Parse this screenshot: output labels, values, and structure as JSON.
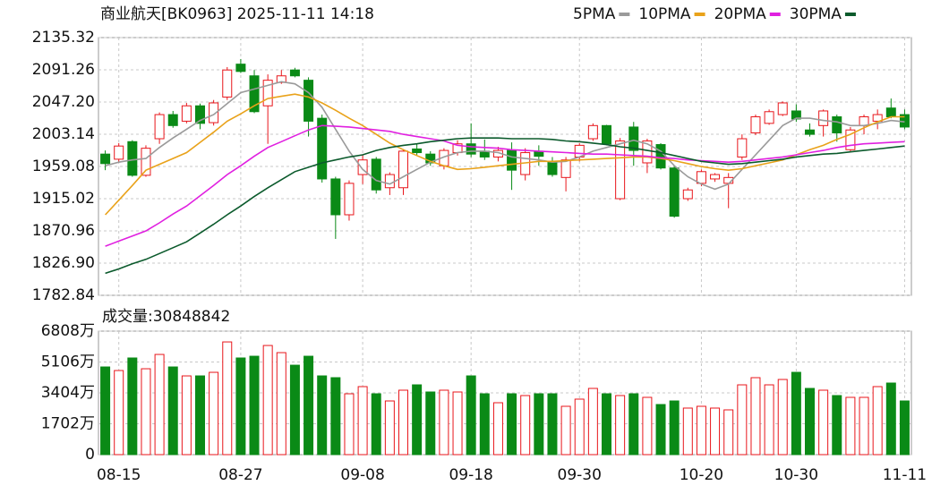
{
  "chart_data": [
    {
      "type": "candlestick",
      "title": "商业航天[BK0963] 2025-11-11 14:18",
      "up_color": "#e8161b",
      "down_color": "#0a8a16",
      "open": [
        1976,
        1969,
        1993,
        1947,
        1997,
        2030,
        2021,
        2042,
        2019,
        2054,
        2099,
        2083,
        2042,
        2074,
        2091,
        2077,
        2025,
        1942,
        1893,
        1948,
        1969,
        1930,
        1930,
        1983,
        1976,
        1960,
        1978,
        1990,
        1980,
        1972,
        1981,
        1948,
        1980,
        1966,
        1944,
        1972,
        1997,
        2015,
        1915,
        2013,
        1964,
        1989,
        1957,
        1915,
        1936,
        1942,
        1936,
        1972,
        2005,
        2018,
        2030,
        2035,
        2009,
        2015,
        2027,
        1982,
        2015,
        2021,
        2039,
        2030
      ],
      "high": [
        1981,
        1991,
        1995,
        1988,
        2033,
        2035,
        2046,
        2045,
        2050,
        2095,
        2106,
        2091,
        2085,
        2091,
        2094,
        2081,
        2030,
        1945,
        1940,
        1975,
        1972,
        1951,
        1983,
        1990,
        1980,
        1984,
        1995,
        2018,
        1996,
        1986,
        1992,
        1984,
        1988,
        1972,
        1972,
        1991,
        2018,
        2016,
        1998,
        2020,
        1997,
        1991,
        1960,
        1930,
        1955,
        1950,
        1950,
        2003,
        2030,
        2037,
        2048,
        2044,
        2018,
        2037,
        2030,
        2013,
        2030,
        2037,
        2052,
        2037
      ],
      "low": [
        1954,
        1964,
        1945,
        1945,
        1990,
        2012,
        2018,
        2010,
        2015,
        2050,
        2087,
        2032,
        1990,
        2072,
        2081,
        2000,
        1937,
        1860,
        1885,
        1935,
        1922,
        1920,
        1920,
        1975,
        1960,
        1955,
        1974,
        1972,
        1968,
        1966,
        1927,
        1940,
        1960,
        1945,
        1925,
        1966,
        1994,
        1988,
        1913,
        1960,
        1950,
        1955,
        1889,
        1912,
        1932,
        1938,
        1902,
        1968,
        2002,
        2016,
        2028,
        2020,
        2000,
        2000,
        1993,
        1980,
        2003,
        2010,
        2025,
        2010
      ],
      "close": [
        1963,
        1987,
        1947,
        1984,
        2030,
        2015,
        2042,
        2018,
        2046,
        2091,
        2089,
        2034,
        2077,
        2083,
        2083,
        2021,
        1942,
        1893,
        1936,
        1968,
        1927,
        1948,
        1980,
        1978,
        1964,
        1981,
        1990,
        1976,
        1972,
        1981,
        1954,
        1978,
        1973,
        1948,
        1968,
        1988,
        2015,
        1990,
        1994,
        1981,
        1994,
        1957,
        1891,
        1927,
        1952,
        1948,
        1944,
        1997,
        2027,
        2034,
        2046,
        2024,
        2003,
        2035,
        2005,
        2009,
        2027,
        2030,
        2027,
        2013
      ],
      "series": [
        {
          "name": "5PMA",
          "color": "#9a9a9a",
          "values": [
            1960,
            1965,
            1968,
            1970,
            1985,
            1998,
            2010,
            2022,
            2030,
            2045,
            2060,
            2065,
            2070,
            2075,
            2072,
            2060,
            2040,
            2010,
            1980,
            1955,
            1940,
            1935,
            1945,
            1955,
            1965,
            1972,
            1978,
            1980,
            1980,
            1978,
            1972,
            1970,
            1968,
            1965,
            1966,
            1972,
            1980,
            1985,
            1990,
            1995,
            1990,
            1980,
            1960,
            1945,
            1935,
            1928,
            1935,
            1955,
            1975,
            1995,
            2015,
            2025,
            2025,
            2022,
            2020,
            2015,
            2015,
            2018,
            2022,
            2020
          ]
        },
        {
          "name": "10PMA",
          "color": "#e9a21a",
          "values": [
            1893,
            1913,
            1933,
            1954,
            1962,
            1970,
            1978,
            1992,
            2006,
            2021,
            2031,
            2042,
            2052,
            2055,
            2058,
            2054,
            2046,
            2036,
            2025,
            2015,
            2003,
            1991,
            1982,
            1974,
            1966,
            1960,
            1955,
            1956,
            1958,
            1960,
            1962,
            1964,
            1966,
            1966,
            1967,
            1968,
            1969,
            1970,
            1971,
            1972,
            1972,
            1970,
            1967,
            1963,
            1959,
            1956,
            1954,
            1956,
            1960,
            1964,
            1968,
            1975,
            1982,
            1988,
            1996,
            2003,
            2012,
            2020,
            2027,
            2027
          ]
        },
        {
          "name": "20PMA",
          "color": "#e020e0",
          "values": [
            1850,
            1857,
            1864,
            1871,
            1882,
            1894,
            1905,
            1919,
            1933,
            1948,
            1960,
            1973,
            1985,
            1993,
            2001,
            2009,
            2015,
            2014,
            2013,
            2011,
            2009,
            2007,
            2003,
            2000,
            1997,
            1994,
            1988,
            1986,
            1985,
            1984,
            1982,
            1981,
            1980,
            1979,
            1978,
            1977,
            1976,
            1976,
            1975,
            1974,
            1973,
            1971,
            1970,
            1968,
            1967,
            1966,
            1965,
            1966,
            1968,
            1970,
            1972,
            1975,
            1978,
            1981,
            1985,
            1988,
            1990,
            1991,
            1992,
            1993
          ]
        },
        {
          "name": "30PMA",
          "color": "#0b5a2c",
          "values": [
            1813,
            1819,
            1826,
            1832,
            1840,
            1848,
            1856,
            1868,
            1880,
            1893,
            1905,
            1918,
            1930,
            1941,
            1952,
            1958,
            1964,
            1968,
            1972,
            1975,
            1981,
            1985,
            1988,
            1990,
            1993,
            1995,
            1997,
            1998,
            1998,
            1998,
            1997,
            1997,
            1997,
            1996,
            1994,
            1993,
            1991,
            1989,
            1986,
            1984,
            1981,
            1978,
            1974,
            1970,
            1966,
            1964,
            1962,
            1963,
            1965,
            1967,
            1969,
            1972,
            1974,
            1976,
            1977,
            1979,
            1981,
            1983,
            1985,
            1987
          ]
        }
      ],
      "ylim": [
        1782.84,
        2135.32
      ],
      "yticks": [
        1782.84,
        {
          "value": 1826.9,
          "label": "1826.90"
        },
        1870.96,
        1915.02,
        1959.08,
        2003.14,
        {
          "value": 2047.2,
          "label": "2047.20"
        },
        2091.26,
        2135.32
      ],
      "grid": true
    },
    {
      "type": "bar",
      "title": "成交量:30848842",
      "categories": [
        null,
        "08-15",
        null,
        null,
        null,
        null,
        null,
        null,
        null,
        null,
        "08-27",
        null,
        null,
        null,
        null,
        null,
        null,
        null,
        null,
        "09-08",
        null,
        null,
        null,
        null,
        null,
        null,
        null,
        "09-18",
        null,
        null,
        null,
        null,
        null,
        null,
        null,
        "09-30",
        null,
        null,
        null,
        null,
        null,
        null,
        null,
        null,
        "10-20",
        null,
        null,
        null,
        null,
        null,
        null,
        "10-30",
        null,
        null,
        null,
        null,
        null,
        null,
        null,
        "11-11"
      ],
      "values": [
        4833,
        4636,
        5328,
        4734,
        5523,
        4833,
        4340,
        4340,
        4537,
        6213,
        5328,
        5424,
        6016,
        5622,
        4930,
        5424,
        4340,
        4242,
        3354,
        3749,
        3354,
        2959,
        3552,
        3847,
        3453,
        3552,
        3453,
        4340,
        3354,
        2861,
        3354,
        3256,
        3354,
        3354,
        2664,
        3059,
        3650,
        3354,
        3256,
        3354,
        3157,
        2762,
        2959,
        2566,
        2664,
        2566,
        2467,
        3847,
        4242,
        3847,
        4143,
        4537,
        3650,
        3552,
        3256,
        3157,
        3157,
        3749,
        3946,
        2959
      ],
      "ylim": [
        0,
        6808
      ],
      "yticks": [
        0,
        {
          "value": 1702,
          "label": "1702万"
        },
        {
          "value": 3404,
          "label": "3404万"
        },
        {
          "value": 5106,
          "label": "5106万"
        },
        {
          "value": 6808,
          "label": "6808万"
        }
      ],
      "grid": true
    }
  ]
}
